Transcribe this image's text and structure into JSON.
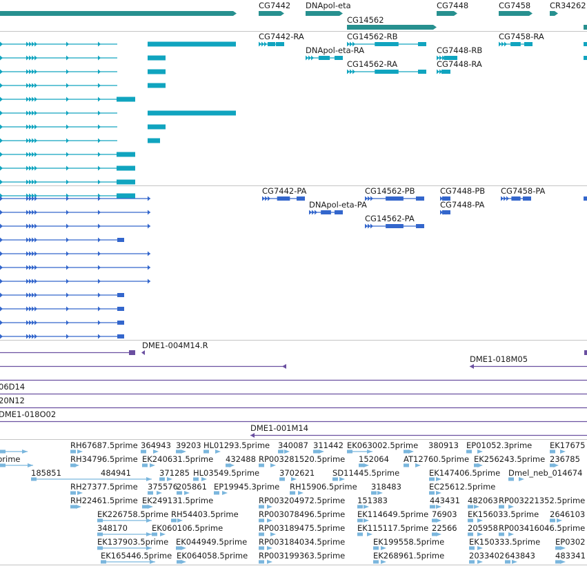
{
  "colors": {
    "gene": "#27908f",
    "transcript_cyan": "#10a4bf",
    "transcript_blue": "#3366cc",
    "clone": "#6a4fa0",
    "est": "#7ab6dd"
  },
  "track_gene": {
    "labels": [
      "CG7442",
      "DNApol-eta",
      "CG14562",
      "CG7448",
      "CG7458",
      "CR34262"
    ]
  },
  "track_transcript_cyan": {
    "labels": [
      "CG7442-RA",
      "CG14562-RB",
      "CG7458-RA",
      "DNApol-eta-RA",
      "CG7448-RB",
      "CG14562-RA",
      "CG7448-RA"
    ]
  },
  "track_transcript_blue": {
    "labels": [
      "CG7442-PA",
      "CG14562-PB",
      "CG7448-PB",
      "CG7458-PA",
      "DNApol-eta-PA",
      "CG7448-PA",
      "CG14562-PA"
    ]
  },
  "track_clone": {
    "labels": [
      "DME1-004M14.R",
      "DME1-018M05",
      "06D14",
      "20N12",
      "DME1-018O02",
      "DME1-001M14"
    ]
  },
  "track_est": {
    "labels": [
      "RH67687.5prime",
      "364943",
      "39203",
      "HL01293.5prime",
      "340087",
      "311442",
      "EK063002.5prime",
      "380913",
      "EP01052.3prime",
      "EK17675",
      "prime",
      "RH34796.5prime",
      "EK240631.5prime",
      "432488",
      "RP003281520.5prime",
      "152064",
      "AT12760.5prime",
      "EK256243.5prime",
      "236785",
      "185851",
      "484941",
      "371285",
      "HL03549.5prime",
      "3702621",
      "SD11445.5prime",
      "EK147406.5prime",
      "Dmel_neb_014674",
      "RH27377.5prime",
      "375576",
      "205861",
      "EP19945.3prime",
      "RH15906.5prime",
      "318483",
      "EC25612.5prime",
      "RH22461.5prime",
      "EK249131.5prime",
      "RP003204972.5prime",
      "151383",
      "443431",
      "482063",
      "RP003221352.5prime",
      "EK226758.5prime",
      "RH54403.5prime",
      "RP003078496.5prime",
      "EK114649.5prime",
      "76903",
      "EK156033.5prime",
      "2646103",
      "348170",
      "EK060106.5prime",
      "RP003189475.5prime",
      "EK115117.5prime",
      "22566",
      "205958",
      "RP003416046.5prime",
      "EK137903.5prime",
      "EK044949.5prime",
      "RP003184034.5prime",
      "EK199558.5prime",
      "EK150333.5prime",
      "EP0302",
      "EK165446.5prime",
      "EK064058.5prime",
      "RP003199363.5prime",
      "EK268961.5prime",
      "2033402",
      "643843",
      "483341"
    ]
  }
}
